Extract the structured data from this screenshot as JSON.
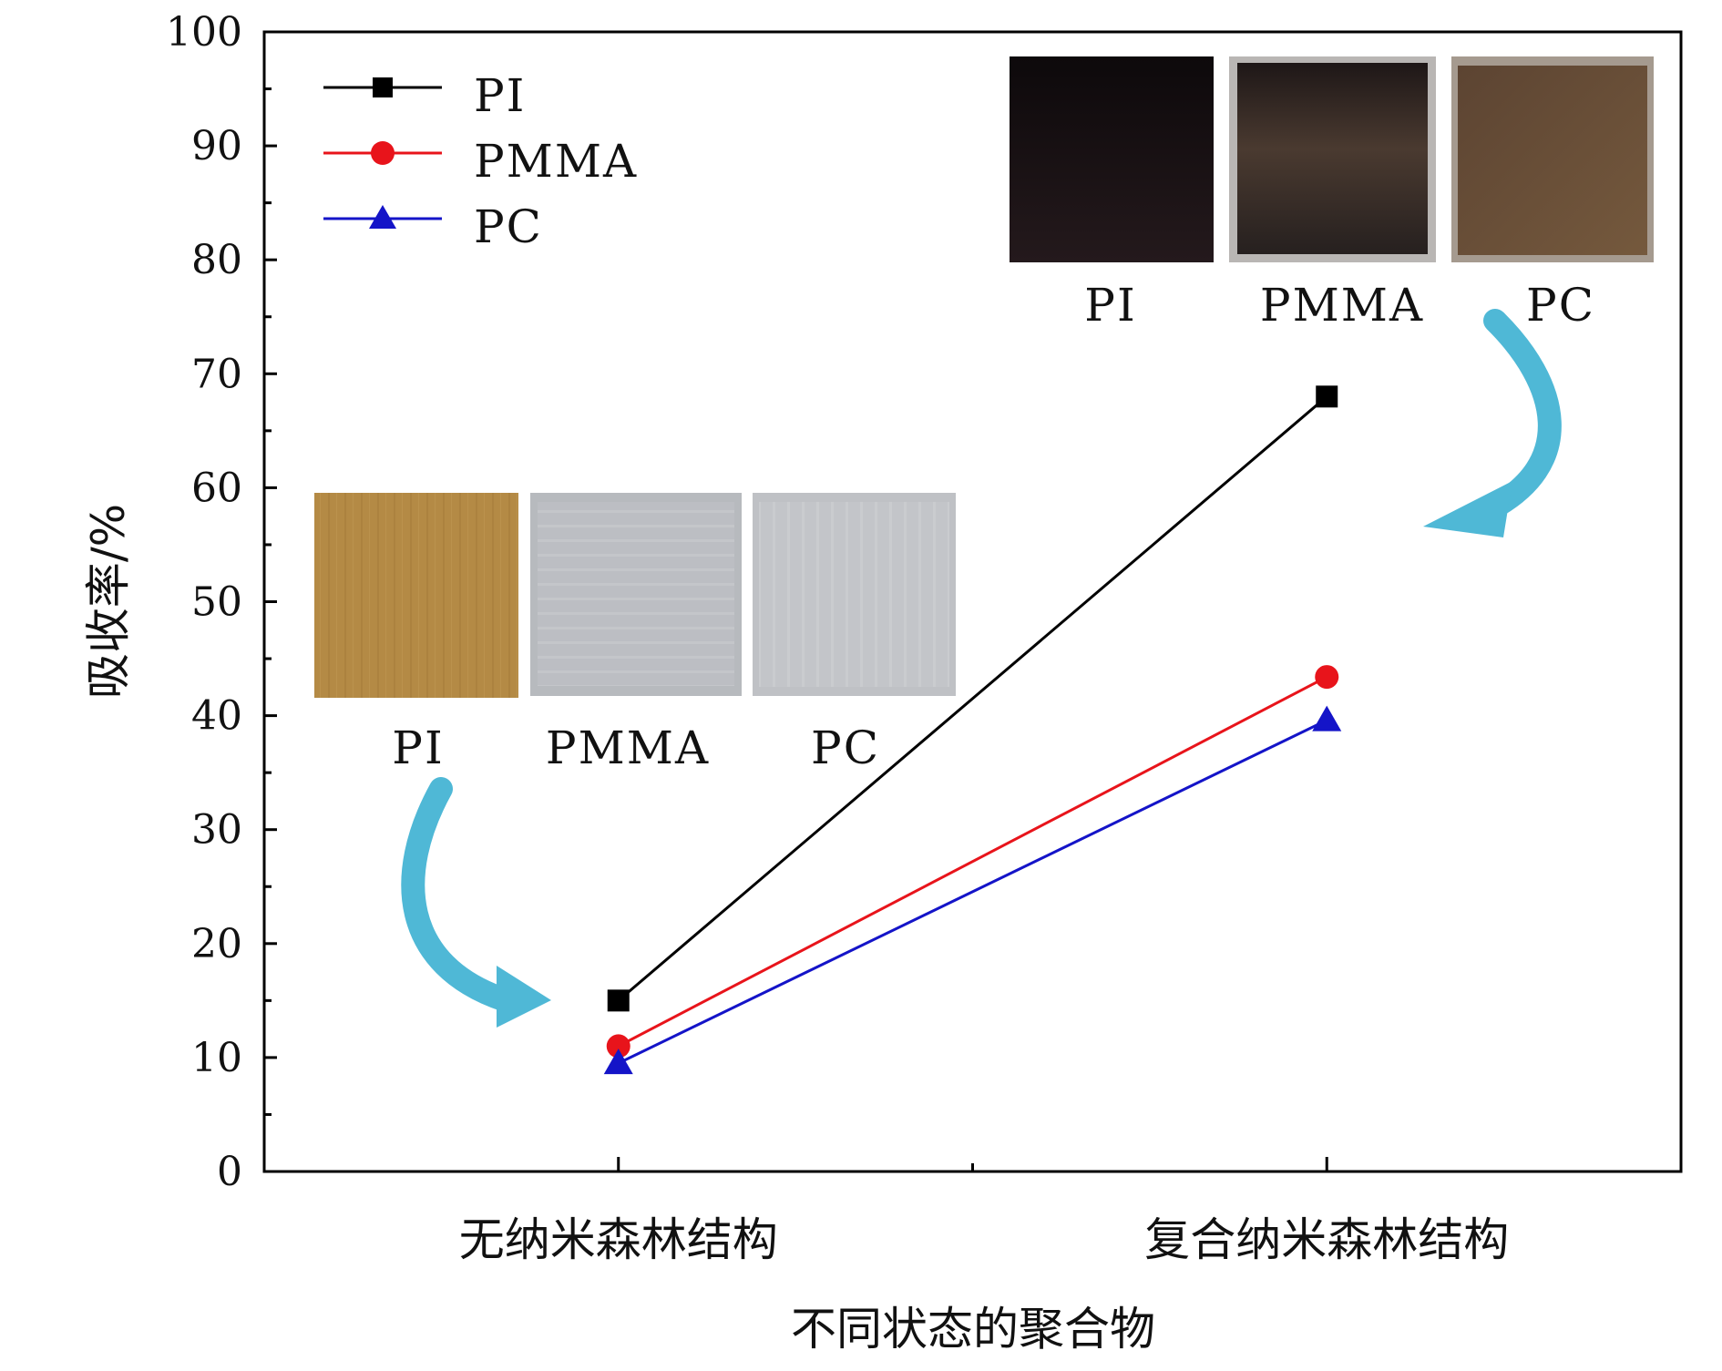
{
  "chart_data": {
    "type": "line",
    "title": "",
    "xlabel": "不同状态的聚合物",
    "ylabel": "吸收率/%",
    "categories": [
      "无纳米森林结构",
      "复合纳米森林结构"
    ],
    "ylim": [
      0,
      100
    ],
    "yticks": [
      0,
      10,
      20,
      30,
      40,
      50,
      60,
      70,
      80,
      90,
      100
    ],
    "grid": false,
    "legend_position": "top-left",
    "series": [
      {
        "name": "PI",
        "values": [
          15,
          68
        ],
        "color": "#000000",
        "marker": "square"
      },
      {
        "name": "PMMA",
        "values": [
          11,
          43.4
        ],
        "color": "#e8141b",
        "marker": "circle"
      },
      {
        "name": "PC",
        "values": [
          9.5,
          39.6
        ],
        "color": "#1414c8",
        "marker": "triangle"
      }
    ]
  },
  "insets": {
    "before": {
      "labels": [
        "PI",
        "PMMA",
        "PC"
      ],
      "colors": [
        "#b48a45",
        "#b9bcc1",
        "#c2c4c8"
      ]
    },
    "after": {
      "labels": [
        "PI",
        "PMMA",
        "PC"
      ],
      "colors": [
        "#1c1417",
        "#2f2422",
        "#6a5037"
      ]
    }
  },
  "arrow_color": "#4fb8d6"
}
